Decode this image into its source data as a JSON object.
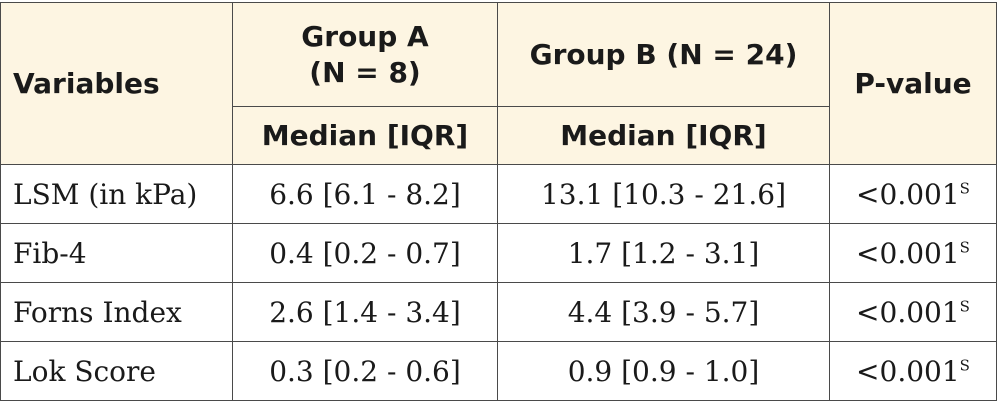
{
  "table": {
    "headers": {
      "variables": "Variables",
      "group_a_line1": "Group A",
      "group_a_line2": "(N = 8)",
      "group_b": "Group B (N = 24)",
      "p_value": "P-value",
      "median_iqr_a": "Median [IQR]",
      "median_iqr_b": "Median [IQR]"
    },
    "rows": [
      {
        "variable": "LSM (in kPa)",
        "group_a": "6.6 [6.1 - 8.2]",
        "group_b": "13.1 [10.3 - 21.6]",
        "p_value": "<0.001",
        "p_sup": "S"
      },
      {
        "variable": "Fib-4",
        "group_a": "0.4 [0.2 - 0.7]",
        "group_b": "1.7 [1.2 - 3.1]",
        "p_value": "<0.001",
        "p_sup": "S"
      },
      {
        "variable": "Forns Index",
        "group_a": "2.6 [1.4 - 3.4]",
        "group_b": "4.4 [3.9 - 5.7]",
        "p_value": "<0.001",
        "p_sup": "S"
      },
      {
        "variable": "Lok Score",
        "group_a": "0.3 [0.2 - 0.6]",
        "group_b": "0.9 [0.9 - 1.0]",
        "p_value": "<0.001",
        "p_sup": "S"
      }
    ]
  }
}
